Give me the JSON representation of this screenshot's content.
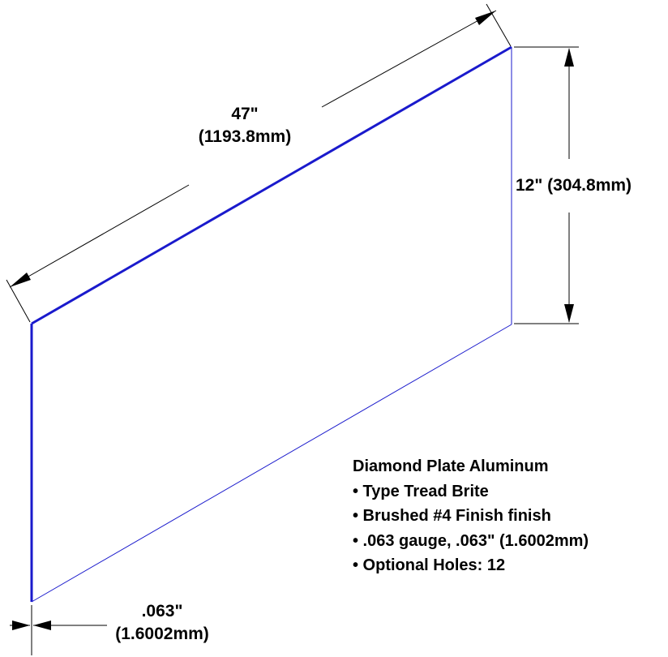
{
  "colors": {
    "outline": "#1a1acc",
    "dimension_lines": "#000000",
    "text": "#000000",
    "background": "#ffffff"
  },
  "dimensions": {
    "length_in": "47\"",
    "length_mm": "(1193.8mm)",
    "height": "12\" (304.8mm)",
    "thickness_in": ".063\"",
    "thickness_mm": "(1.6002mm)"
  },
  "specs": {
    "title": "Diamond Plate Aluminum",
    "items": [
      "• Type Tread Brite",
      "• Brushed #4 Finish finish",
      "• .063 gauge, .063\" (1.6002mm)",
      "• Optional Holes: 12"
    ]
  }
}
